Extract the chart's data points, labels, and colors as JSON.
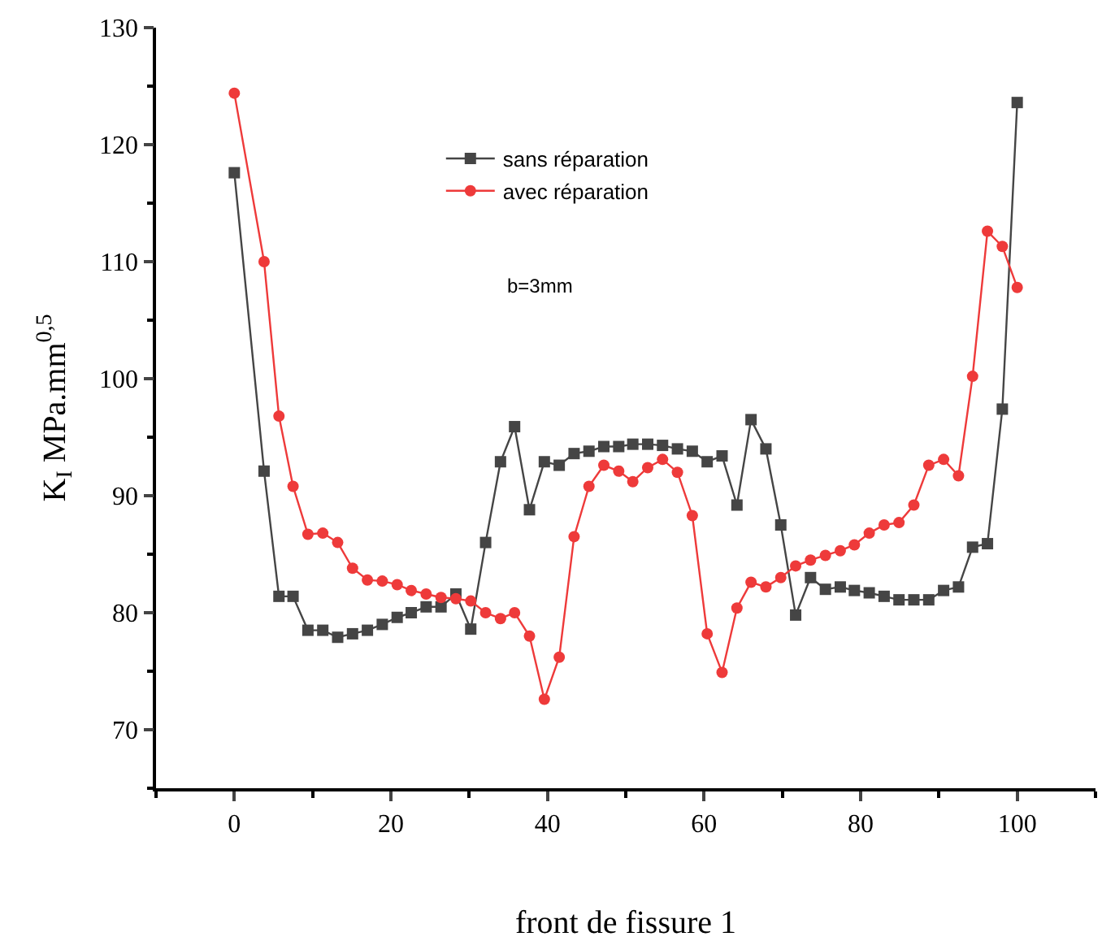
{
  "chart_data": {
    "type": "line",
    "xlabel": "front de fissure 1",
    "ylabel": "K$_{I}$ MPa.mm$^{0,5}$",
    "x": [
      0,
      3.8,
      5.7,
      7.5,
      9.4,
      11.3,
      13.2,
      15.1,
      17.0,
      18.9,
      20.8,
      22.6,
      24.5,
      26.4,
      28.3,
      30.2,
      32.1,
      34.0,
      35.8,
      37.7,
      39.6,
      41.5,
      43.4,
      45.3,
      47.2,
      49.1,
      50.9,
      52.8,
      54.7,
      56.6,
      58.5,
      60.4,
      62.3,
      64.2,
      66.0,
      67.9,
      69.8,
      71.7,
      73.6,
      75.5,
      77.4,
      79.2,
      81.1,
      83.0,
      84.9,
      86.8,
      88.7,
      90.6,
      92.5,
      94.3,
      96.2,
      98.1,
      100
    ],
    "series": [
      {
        "name": "sans réparation",
        "color": "#454545",
        "marker": "square",
        "values": [
          117.6,
          92.1,
          81.4,
          81.4,
          78.5,
          78.5,
          77.9,
          78.2,
          78.5,
          79.0,
          79.6,
          80.0,
          80.5,
          80.5,
          81.6,
          78.6,
          86.0,
          92.9,
          95.9,
          88.8,
          92.9,
          92.6,
          93.6,
          93.8,
          94.2,
          94.2,
          94.4,
          94.4,
          94.3,
          94.0,
          93.8,
          92.9,
          93.4,
          89.2,
          96.5,
          94.0,
          87.5,
          79.8,
          83.0,
          82.0,
          82.2,
          81.9,
          81.7,
          81.4,
          81.1,
          81.1,
          81.1,
          81.9,
          82.2,
          85.6,
          85.9,
          97.4,
          123.6
        ]
      },
      {
        "name": "avec réparation",
        "color": "#ee3a3a",
        "marker": "circle",
        "values": [
          124.4,
          110.0,
          96.8,
          90.8,
          86.7,
          86.8,
          86.0,
          83.8,
          82.8,
          82.7,
          82.4,
          81.9,
          81.6,
          81.3,
          81.2,
          81.0,
          80.0,
          79.5,
          80.0,
          78.0,
          72.6,
          76.2,
          86.5,
          90.8,
          92.6,
          92.1,
          91.2,
          92.4,
          93.1,
          92.0,
          88.3,
          78.2,
          74.9,
          80.4,
          82.6,
          82.2,
          83.0,
          84.0,
          84.5,
          84.9,
          85.3,
          85.8,
          86.8,
          87.5,
          87.7,
          89.2,
          92.6,
          93.1,
          91.7,
          100.2,
          112.6,
          111.3,
          107.8
        ]
      }
    ],
    "annotations": [
      "b=3mm"
    ],
    "xlim": [
      -10,
      110
    ],
    "xticks": [
      0,
      20,
      40,
      60,
      80,
      100
    ],
    "ylim": [
      65,
      130
    ],
    "yticks": [
      70,
      80,
      90,
      100,
      110,
      120,
      130
    ],
    "legend": "top",
    "line_style": "solid"
  }
}
